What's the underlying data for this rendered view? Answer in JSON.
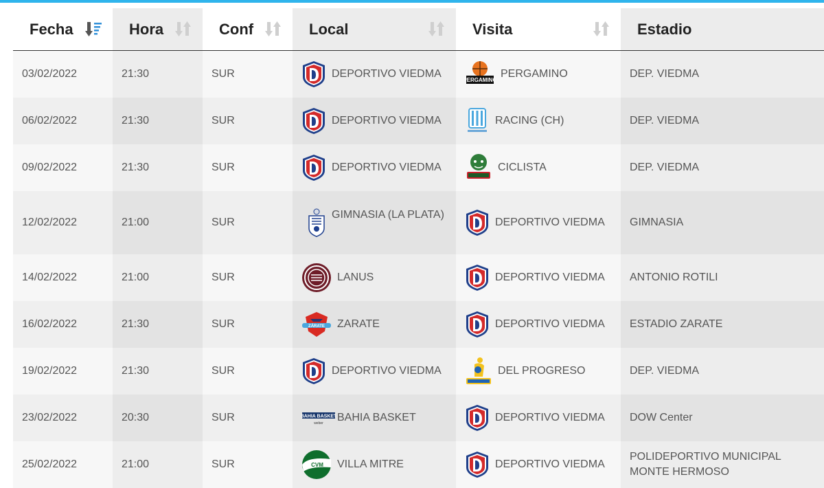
{
  "colors": {
    "accent": "#2fb4ec",
    "row_light": "#f7f7f7",
    "row_dark": "#efefef",
    "sorted_column_bg": "#ececec"
  },
  "headers": {
    "fecha": "Fecha",
    "hora": "Hora",
    "conf": "Conf",
    "local": "Local",
    "visita": "Visita",
    "estadio": "Estadio"
  },
  "sort_icons": {
    "fecha": "sort-ascending-active-icon",
    "hora": "sort-icon",
    "conf": "sort-icon",
    "local": "sort-icon",
    "visita": "sort-icon"
  },
  "rows": [
    {
      "fecha": "03/02/2022",
      "hora": "21:30",
      "conf": "SUR",
      "local": "DEPORTIVO VIEDMA",
      "local_logo": "deportivo-viedma-logo",
      "visita": "PERGAMINO",
      "visita_logo": "pergamino-logo",
      "estadio": "DEP. VIEDMA"
    },
    {
      "fecha": "06/02/2022",
      "hora": "21:30",
      "conf": "SUR",
      "local": "DEPORTIVO VIEDMA",
      "local_logo": "deportivo-viedma-logo",
      "visita": "RACING (CH)",
      "visita_logo": "racing-chivilcoy-logo",
      "estadio": "DEP. VIEDMA"
    },
    {
      "fecha": "09/02/2022",
      "hora": "21:30",
      "conf": "SUR",
      "local": "DEPORTIVO VIEDMA",
      "local_logo": "deportivo-viedma-logo",
      "visita": "CICLISTA",
      "visita_logo": "ciclista-logo",
      "estadio": "DEP. VIEDMA"
    },
    {
      "fecha": "12/02/2022",
      "hora": "21:00",
      "conf": "SUR",
      "local": "GIMNASIA (LA PLATA)",
      "local_logo": "gimnasia-logo",
      "visita": "DEPORTIVO VIEDMA",
      "visita_logo": "deportivo-viedma-logo",
      "estadio": "GIMNASIA"
    },
    {
      "fecha": "14/02/2022",
      "hora": "21:00",
      "conf": "SUR",
      "local": "LANUS",
      "local_logo": "lanus-logo",
      "visita": "DEPORTIVO VIEDMA",
      "visita_logo": "deportivo-viedma-logo",
      "estadio": "ANTONIO ROTILI"
    },
    {
      "fecha": "16/02/2022",
      "hora": "21:30",
      "conf": "SUR",
      "local": "ZARATE",
      "local_logo": "zarate-logo",
      "visita": "DEPORTIVO VIEDMA",
      "visita_logo": "deportivo-viedma-logo",
      "estadio": "ESTADIO ZARATE"
    },
    {
      "fecha": "19/02/2022",
      "hora": "21:30",
      "conf": "SUR",
      "local": "DEPORTIVO VIEDMA",
      "local_logo": "deportivo-viedma-logo",
      "visita": "DEL PROGRESO",
      "visita_logo": "del-progreso-logo",
      "estadio": "DEP. VIEDMA"
    },
    {
      "fecha": "23/02/2022",
      "hora": "20:30",
      "conf": "SUR",
      "local": "BAHIA BASKET",
      "local_logo": "bahia-basket-logo",
      "visita": "DEPORTIVO VIEDMA",
      "visita_logo": "deportivo-viedma-logo",
      "estadio": "DOW Center"
    },
    {
      "fecha": "25/02/2022",
      "hora": "21:00",
      "conf": "SUR",
      "local": "VILLA MITRE",
      "local_logo": "villa-mitre-logo",
      "visita": "DEPORTIVO VIEDMA",
      "visita_logo": "deportivo-viedma-logo",
      "estadio": "POLIDEPORTIVO MUNICIPAL MONTE HERMOSO"
    }
  ]
}
